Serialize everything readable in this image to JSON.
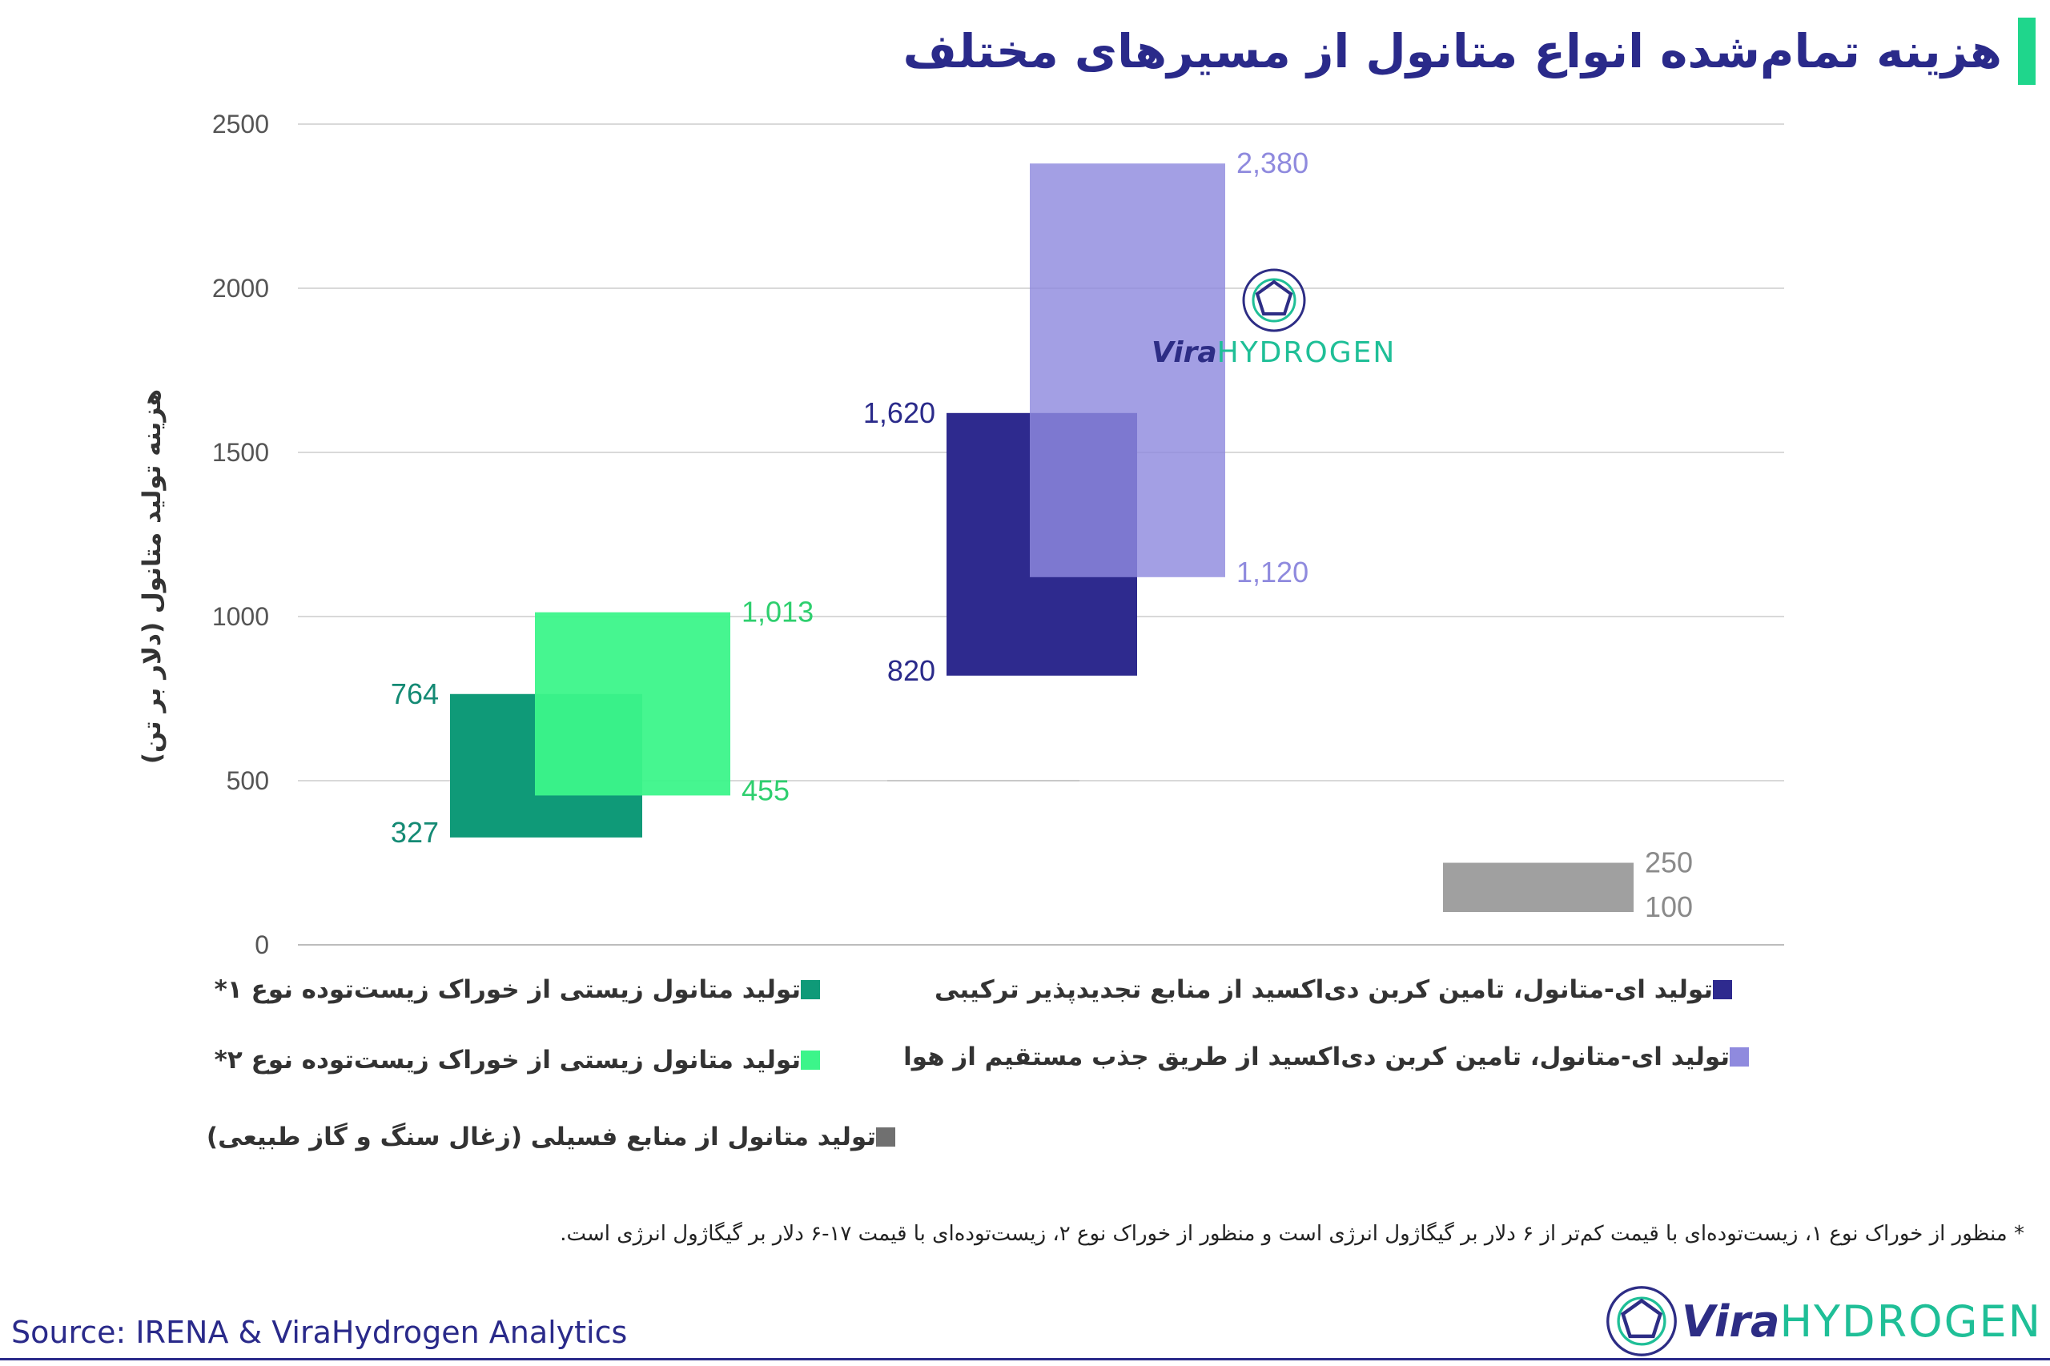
{
  "title": "هزینه تمام‌شده انواع متانول از مسیرهای مختلف",
  "colors": {
    "bio_type1": "#0f9a78",
    "bio_type2": "#3cf58a",
    "emethanol_renewable": "#2e2a8e",
    "emethanol_dac": "#8f8ade",
    "fossil": "#a0a0a0",
    "title_accent": "#1fd68c",
    "brand": "#2a2a8a"
  },
  "chart_data": {
    "type": "bar",
    "subtype": "floating-range",
    "ylabel": "هزینه تولید متانول (دلار بر تن)",
    "ylim": [
      0,
      2500
    ],
    "yticks": [
      "0",
      "500",
      "1000",
      "1500",
      "2000",
      "2500"
    ],
    "grid": true,
    "legend_position": "bottom",
    "series": [
      {
        "name": "تولید متانول زیستی از خوراک زیست‌توده نوع ۱*",
        "min": 327,
        "max": 764,
        "min_label": "327",
        "max_label": "764",
        "color": "#0f9a78",
        "label_color": "#148a74",
        "label_side": "left"
      },
      {
        "name": "تولید متانول زیستی از خوراک زیست‌توده نوع ۲*",
        "min": 455,
        "max": 1013,
        "min_label": "455",
        "max_label": "1,013",
        "color": "#3cf58a",
        "label_color": "#2ecf6e",
        "label_side": "right"
      },
      {
        "name": "تولید ای-متانول، تامین کربن دی‌اکسید از منابع تجدیدپذیر ترکیبی",
        "min": 820,
        "max": 1620,
        "min_label": "820",
        "max_label": "1,620",
        "color": "#2e2a8e",
        "label_color": "#2a2a8a",
        "label_side": "left"
      },
      {
        "name": "تولید ای-متانول، تامین کربن دی‌اکسید از طریق جذب مستقیم از هوا",
        "min": 1120,
        "max": 2380,
        "min_label": "1,120",
        "max_label": "2,380",
        "color": "#8f8ade",
        "label_color": "#8f8ade",
        "label_side": "right"
      },
      {
        "name": "تولید متانول از منابع فسیلی (زغال سنگ و گاز طبیعی)",
        "min": 100,
        "max": 250,
        "min_label": "100",
        "max_label": "250",
        "color": "#a0a0a0",
        "label_color": "#8a8a8a",
        "label_side": "right"
      }
    ]
  },
  "legend": [
    {
      "label": "تولید متانول زیستی از خوراک زیست‌توده نوع ۱*",
      "color": "#0f9a78"
    },
    {
      "label": "تولید متانول زیستی از خوراک زیست‌توده نوع ۲*",
      "color": "#3cf58a"
    },
    {
      "label": "تولید متانول از منابع فسیلی (زغال سنگ و گاز طبیعی)",
      "color": "#707070"
    },
    {
      "label": "تولید ای-متانول، تامین کربن دی‌اکسید از منابع تجدیدپذیر ترکیبی",
      "color": "#2e2a8e"
    },
    {
      "label": "تولید ای-متانول، تامین کربن دی‌اکسید از طریق جذب مستقیم از هوا",
      "color": "#8f8ade"
    }
  ],
  "footnote": "* منظور از خوراک نوع ۱، زیست‌توده‌ای با قیمت کم‌تر از ۶ دلار بر گیگاژول انرژی است و منظور از خوراک نوع ۲، زیست‌توده‌ای با قیمت ۱۷-۶ دلار بر گیگاژول انرژی است.",
  "source": "Source: IRENA & ViraHydrogen Analytics",
  "brand": {
    "vira": "Vira",
    "hydrogen": "HYDROGEN"
  }
}
